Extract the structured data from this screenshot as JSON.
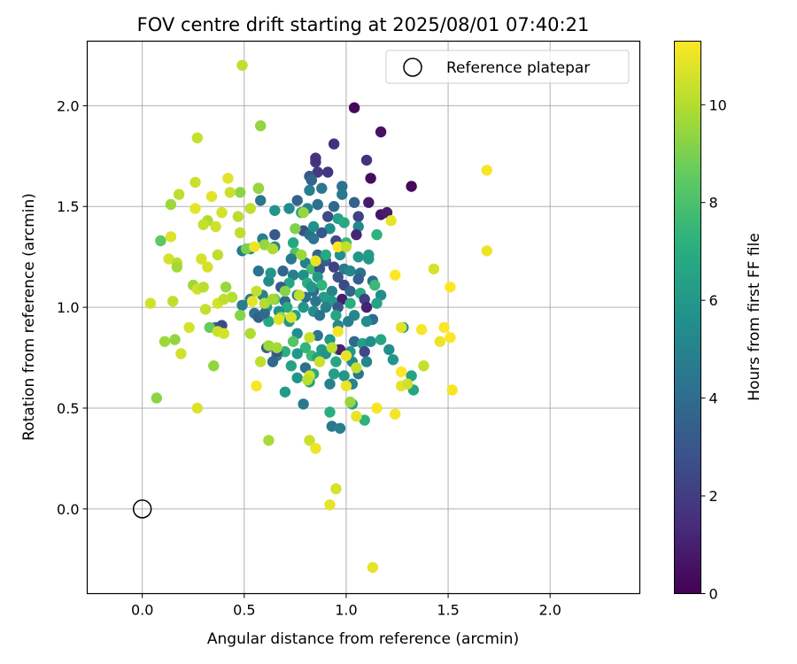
{
  "chart_data": {
    "type": "scatter",
    "title": "FOV centre drift starting at 2025/08/01 07:40:21",
    "xlabel": "Angular distance from reference (arcmin)",
    "ylabel": "Rotation from reference (arcmin)",
    "xlim": [
      -0.27,
      2.44
    ],
    "ylim": [
      -0.42,
      2.32
    ],
    "xticks": [
      "0.0",
      "0.5",
      "1.0",
      "1.5",
      "2.0"
    ],
    "yticks": [
      "0.0",
      "0.5",
      "1.0",
      "1.5",
      "2.0"
    ],
    "grid": true,
    "legend": {
      "placement": "top-right",
      "entries": [
        "Reference platepar"
      ]
    },
    "reference_point": {
      "x": 0.0,
      "y": 0.0
    },
    "colorbar": {
      "label": "Hours from first FF file",
      "min": 0,
      "max": 11.3,
      "ticks": [
        "0",
        "2",
        "4",
        "6",
        "8",
        "10"
      ],
      "colormap": "viridis"
    },
    "points_format": "[x, y, hours]",
    "points": [
      [
        1.04,
        1.99,
        0.2
      ],
      [
        1.17,
        1.87,
        0.5
      ],
      [
        0.94,
        1.81,
        1.5
      ],
      [
        0.85,
        1.72,
        1.8
      ],
      [
        0.86,
        1.67,
        1.9
      ],
      [
        0.91,
        1.67,
        1.7
      ],
      [
        0.82,
        1.65,
        3.0
      ],
      [
        0.83,
        1.63,
        3.6
      ],
      [
        1.1,
        1.73,
        1.6
      ],
      [
        1.12,
        1.64,
        0.4
      ],
      [
        1.32,
        1.6,
        0.3
      ],
      [
        0.98,
        1.6,
        4.3
      ],
      [
        0.88,
        1.59,
        4.5
      ],
      [
        0.82,
        1.58,
        4.8
      ],
      [
        0.57,
        1.59,
        3.9
      ],
      [
        0.98,
        1.56,
        4.5
      ],
      [
        0.86,
        1.51,
        4.2
      ],
      [
        1.04,
        1.52,
        3.5
      ],
      [
        1.11,
        1.52,
        0.8
      ],
      [
        0.94,
        1.5,
        3.8
      ],
      [
        0.81,
        1.49,
        5.1
      ],
      [
        0.72,
        1.49,
        5.4
      ],
      [
        0.65,
        1.48,
        5.8
      ],
      [
        0.78,
        1.47,
        6.2
      ],
      [
        1.17,
        1.46,
        0.6
      ],
      [
        1.2,
        1.47,
        0.9
      ],
      [
        1.06,
        1.45,
        2.2
      ],
      [
        0.91,
        1.45,
        2.6
      ],
      [
        0.96,
        1.44,
        6.5
      ],
      [
        0.99,
        1.42,
        6.8
      ],
      [
        0.92,
        1.39,
        5.5
      ],
      [
        1.06,
        1.4,
        5.3
      ],
      [
        0.79,
        1.38,
        2.8
      ],
      [
        0.88,
        1.37,
        3.1
      ],
      [
        1.05,
        1.36,
        1.2
      ],
      [
        1.15,
        1.36,
        7.2
      ],
      [
        0.82,
        1.36,
        4.0
      ],
      [
        0.84,
        1.34,
        4.4
      ],
      [
        0.95,
        1.33,
        2.5
      ],
      [
        1.0,
        1.32,
        7.5
      ],
      [
        0.74,
        1.32,
        6.7
      ],
      [
        0.65,
        1.3,
        5.1
      ],
      [
        0.75,
        1.27,
        8.1
      ],
      [
        0.86,
        1.26,
        3.6
      ],
      [
        0.97,
        1.26,
        5.6
      ],
      [
        1.06,
        1.25,
        5.9
      ],
      [
        1.11,
        1.26,
        6.3
      ],
      [
        0.73,
        1.24,
        4.5
      ],
      [
        0.8,
        1.22,
        4.9
      ],
      [
        0.9,
        1.23,
        3.3
      ],
      [
        1.11,
        1.24,
        6.0
      ],
      [
        0.83,
        1.19,
        7.8
      ],
      [
        0.87,
        1.19,
        3.0
      ],
      [
        0.94,
        1.2,
        2.2
      ],
      [
        0.99,
        1.19,
        4.6
      ],
      [
        1.02,
        1.18,
        5.2
      ],
      [
        1.07,
        1.17,
        4.2
      ],
      [
        0.57,
        1.18,
        4.3
      ],
      [
        0.69,
        1.18,
        3.7
      ],
      [
        0.74,
        1.16,
        4.8
      ],
      [
        0.79,
        1.16,
        5.6
      ],
      [
        0.86,
        1.15,
        6.1
      ],
      [
        0.96,
        1.15,
        2.9
      ],
      [
        1.06,
        1.14,
        3.4
      ],
      [
        1.13,
        1.13,
        4.1
      ],
      [
        0.62,
        1.13,
        5.3
      ],
      [
        0.72,
        1.12,
        6.6
      ],
      [
        0.81,
        1.12,
        7.0
      ],
      [
        0.88,
        1.11,
        7.3
      ],
      [
        0.99,
        1.11,
        2.4
      ],
      [
        1.14,
        1.11,
        7.6
      ],
      [
        0.68,
        1.1,
        3.2
      ],
      [
        0.84,
        1.08,
        3.9
      ],
      [
        0.93,
        1.08,
        5.1
      ],
      [
        1.02,
        1.08,
        3.6
      ],
      [
        1.07,
        1.07,
        6.9
      ],
      [
        1.17,
        1.06,
        5.5
      ],
      [
        0.59,
        1.06,
        5.0
      ],
      [
        0.76,
        1.06,
        4.6
      ],
      [
        0.8,
        1.05,
        4.1
      ],
      [
        0.89,
        1.05,
        6.2
      ],
      [
        0.98,
        1.04,
        0.9
      ],
      [
        1.09,
        1.04,
        2.1
      ],
      [
        0.53,
        1.04,
        4.7
      ],
      [
        0.65,
        1.04,
        8.5
      ],
      [
        0.7,
        1.03,
        3.9
      ],
      [
        0.85,
        1.03,
        4.4
      ],
      [
        0.93,
        1.03,
        6.0
      ],
      [
        1.02,
        1.02,
        7.1
      ],
      [
        1.15,
        1.02,
        6.5
      ],
      [
        0.49,
        1.01,
        4.8
      ],
      [
        0.61,
        1.0,
        6.4
      ],
      [
        0.71,
        1.0,
        6.9
      ],
      [
        0.79,
        1.0,
        5.9
      ],
      [
        0.9,
        1.0,
        4.9
      ],
      [
        0.96,
        1.0,
        3.1
      ],
      [
        1.1,
        1.0,
        1.1
      ],
      [
        0.55,
        0.97,
        4.3
      ],
      [
        0.67,
        0.98,
        5.7
      ],
      [
        0.84,
        0.98,
        5.5
      ],
      [
        0.95,
        0.96,
        6.6
      ],
      [
        1.04,
        0.96,
        5.3
      ],
      [
        1.13,
        0.94,
        4.0
      ],
      [
        0.57,
        0.95,
        3.5
      ],
      [
        0.68,
        0.95,
        9.5
      ],
      [
        0.75,
        0.96,
        6.3
      ],
      [
        0.87,
        0.96,
        4.3
      ],
      [
        1.01,
        0.93,
        4.8
      ],
      [
        1.1,
        0.93,
        5.5
      ],
      [
        0.62,
        0.93,
        6.7
      ],
      [
        0.72,
        0.93,
        5.9
      ],
      [
        0.96,
        0.91,
        5.2
      ],
      [
        1.28,
        0.9,
        6.1
      ],
      [
        0.76,
        0.87,
        5.6
      ],
      [
        0.86,
        0.86,
        4.4
      ],
      [
        0.92,
        0.84,
        5.9
      ],
      [
        1.04,
        0.83,
        3.8
      ],
      [
        1.08,
        0.82,
        6.3
      ],
      [
        1.12,
        0.83,
        5.5
      ],
      [
        1.17,
        0.84,
        6.7
      ],
      [
        0.74,
        0.83,
        8.2
      ],
      [
        0.8,
        0.8,
        7.3
      ],
      [
        0.88,
        0.79,
        6.1
      ],
      [
        0.96,
        0.79,
        8.0
      ],
      [
        1.02,
        0.78,
        6.0
      ],
      [
        1.09,
        0.78,
        2.4
      ],
      [
        1.21,
        0.79,
        5.5
      ],
      [
        0.7,
        0.78,
        7.1
      ],
      [
        0.66,
        0.76,
        4.9
      ],
      [
        0.76,
        0.77,
        6.0
      ],
      [
        0.83,
        0.76,
        7.7
      ],
      [
        0.86,
        0.75,
        6.4
      ],
      [
        0.9,
        0.77,
        5.7
      ],
      [
        0.95,
        0.73,
        6.7
      ],
      [
        1.03,
        0.73,
        5.3
      ],
      [
        1.1,
        0.73,
        5.1
      ],
      [
        1.23,
        0.74,
        5.9
      ],
      [
        0.64,
        0.73,
        3.7
      ],
      [
        0.73,
        0.71,
        6.5
      ],
      [
        0.8,
        0.7,
        4.2
      ],
      [
        0.84,
        0.67,
        6.8
      ],
      [
        0.94,
        0.67,
        6.3
      ],
      [
        0.99,
        0.66,
        5.9
      ],
      [
        1.06,
        0.67,
        4.5
      ],
      [
        1.32,
        0.66,
        6.5
      ],
      [
        0.76,
        0.65,
        5.8
      ],
      [
        0.82,
        0.63,
        6.4
      ],
      [
        0.92,
        0.62,
        4.9
      ],
      [
        1.03,
        0.62,
        5.2
      ],
      [
        1.33,
        0.59,
        6.6
      ],
      [
        0.7,
        0.58,
        6.1
      ],
      [
        0.79,
        0.52,
        4.6
      ],
      [
        0.92,
        0.48,
        7.1
      ],
      [
        1.03,
        0.52,
        6.4
      ],
      [
        1.09,
        0.44,
        7.2
      ],
      [
        0.93,
        0.41,
        4.5
      ],
      [
        0.97,
        0.4,
        4.9
      ],
      [
        0.53,
        1.29,
        5.2
      ],
      [
        0.59,
        1.34,
        4.9
      ],
      [
        0.65,
        1.36,
        3.2
      ],
      [
        0.36,
        0.9,
        3.6
      ],
      [
        0.97,
        0.79,
        1.0
      ],
      [
        0.39,
        0.91,
        2.6
      ],
      [
        0.61,
        0.8,
        3.5
      ],
      [
        0.66,
        0.78,
        3.1
      ],
      [
        0.85,
        1.74,
        1.6
      ],
      [
        0.76,
        1.53,
        3.6
      ],
      [
        0.9,
        1.26,
        6.8
      ],
      [
        0.84,
        1.4,
        5.6
      ],
      [
        0.58,
        1.53,
        4.4
      ],
      [
        0.63,
        1.17,
        5.9
      ],
      [
        0.49,
        1.28,
        4.5
      ],
      [
        0.83,
        1.1,
        6.0
      ],
      [
        0.6,
        0.97,
        3.9
      ],
      [
        1.27,
        0.9,
        10.8
      ],
      [
        0.18,
        1.56,
        10.2
      ],
      [
        0.26,
        1.62,
        10.4
      ],
      [
        0.42,
        1.64,
        10.8
      ],
      [
        0.32,
        1.43,
        9.9
      ],
      [
        0.48,
        1.57,
        9.3
      ],
      [
        0.14,
        1.51,
        9.6
      ],
      [
        0.26,
        1.49,
        10.9
      ],
      [
        0.43,
        1.57,
        10.4
      ],
      [
        0.34,
        1.55,
        10.8
      ],
      [
        0.39,
        1.47,
        10.6
      ],
      [
        0.47,
        1.45,
        10.1
      ],
      [
        0.58,
        1.9,
        9.4
      ],
      [
        0.27,
        1.84,
        10.3
      ],
      [
        0.49,
        2.2,
        10.2
      ],
      [
        0.57,
        1.59,
        9.5
      ],
      [
        0.3,
        1.41,
        10.3
      ],
      [
        0.36,
        1.4,
        10.5
      ],
      [
        0.53,
        1.49,
        10.2
      ],
      [
        0.09,
        1.33,
        8.4
      ],
      [
        0.14,
        1.35,
        10.7
      ],
      [
        0.48,
        1.37,
        10.2
      ],
      [
        0.51,
        1.29,
        9.0
      ],
      [
        0.6,
        1.31,
        9.5
      ],
      [
        0.64,
        1.29,
        9.9
      ],
      [
        0.75,
        1.39,
        9.1
      ],
      [
        0.13,
        1.24,
        10.6
      ],
      [
        0.17,
        1.22,
        10.1
      ],
      [
        0.29,
        1.24,
        10.6
      ],
      [
        0.32,
        1.2,
        10.6
      ],
      [
        0.37,
        1.26,
        10.2
      ],
      [
        0.55,
        1.3,
        11.0
      ],
      [
        0.78,
        1.26,
        9.6
      ],
      [
        0.96,
        1.3,
        11.3
      ],
      [
        0.17,
        1.2,
        9.7
      ],
      [
        0.25,
        1.11,
        9.6
      ],
      [
        0.27,
        1.09,
        10.5
      ],
      [
        0.3,
        1.1,
        10.1
      ],
      [
        0.41,
        1.1,
        9.5
      ],
      [
        0.44,
        1.05,
        10.0
      ],
      [
        0.56,
        1.08,
        10.3
      ],
      [
        0.6,
        1.02,
        10.0
      ],
      [
        0.7,
        1.08,
        9.2
      ],
      [
        0.77,
        1.06,
        10.2
      ],
      [
        0.04,
        1.02,
        10.5
      ],
      [
        0.15,
        1.03,
        10.2
      ],
      [
        0.31,
        0.99,
        10.3
      ],
      [
        0.37,
        1.02,
        10.6
      ],
      [
        0.4,
        1.04,
        10.2
      ],
      [
        0.48,
        0.96,
        9.2
      ],
      [
        0.54,
        1.03,
        10.9
      ],
      [
        0.64,
        1.04,
        9.7
      ],
      [
        0.67,
        0.94,
        10.7
      ],
      [
        0.73,
        0.95,
        10.7
      ],
      [
        0.23,
        0.9,
        10.6
      ],
      [
        0.33,
        0.9,
        8.6
      ],
      [
        0.37,
        0.88,
        10.4
      ],
      [
        0.4,
        0.87,
        10.6
      ],
      [
        0.53,
        0.87,
        9.9
      ],
      [
        0.62,
        0.81,
        9.6
      ],
      [
        0.66,
        0.8,
        9.7
      ],
      [
        0.11,
        0.83,
        9.6
      ],
      [
        0.16,
        0.84,
        9.4
      ],
      [
        0.19,
        0.77,
        10.5
      ],
      [
        0.56,
        0.61,
        11.2
      ],
      [
        0.58,
        0.73,
        10.2
      ],
      [
        0.35,
        0.71,
        9.4
      ],
      [
        0.82,
        0.85,
        10.3
      ],
      [
        0.82,
        0.66,
        10.6
      ],
      [
        0.81,
        0.64,
        10.1
      ],
      [
        0.87,
        0.73,
        10.4
      ],
      [
        0.93,
        0.8,
        10.1
      ],
      [
        1.0,
        0.76,
        10.9
      ],
      [
        1.05,
        0.7,
        10.3
      ],
      [
        0.96,
        0.88,
        11.1
      ],
      [
        1.0,
        0.61,
        11.0
      ],
      [
        1.02,
        0.53,
        9.5
      ],
      [
        1.05,
        0.46,
        10.9
      ],
      [
        0.82,
        0.34,
        10.4
      ],
      [
        0.85,
        0.3,
        11.0
      ],
      [
        0.62,
        0.34,
        9.8
      ],
      [
        0.27,
        0.5,
        10.7
      ],
      [
        0.07,
        0.55,
        9.3
      ],
      [
        0.95,
        0.1,
        10.6
      ],
      [
        0.92,
        0.02,
        10.9
      ],
      [
        1.13,
        -0.29,
        10.9
      ],
      [
        1.15,
        0.5,
        11.2
      ],
      [
        1.24,
        0.47,
        11.1
      ],
      [
        1.27,
        0.61,
        10.9
      ],
      [
        1.3,
        0.62,
        10.5
      ],
      [
        1.27,
        0.68,
        11.3
      ],
      [
        1.38,
        0.71,
        10.3
      ],
      [
        1.46,
        0.83,
        11.0
      ],
      [
        1.48,
        0.9,
        11.3
      ],
      [
        1.51,
        0.85,
        11.3
      ],
      [
        1.37,
        0.89,
        11.2
      ],
      [
        1.52,
        0.59,
        11.2
      ],
      [
        1.51,
        1.1,
        11.3
      ],
      [
        1.43,
        1.19,
        10.6
      ],
      [
        1.24,
        1.16,
        11.3
      ],
      [
        1.69,
        1.68,
        11.2
      ],
      [
        1.69,
        1.28,
        11.0
      ],
      [
        1.22,
        1.43,
        10.9
      ],
      [
        0.85,
        1.23,
        10.9
      ],
      [
        1.0,
        1.3,
        10.3
      ],
      [
        0.79,
        1.47,
        9.5
      ]
    ]
  }
}
